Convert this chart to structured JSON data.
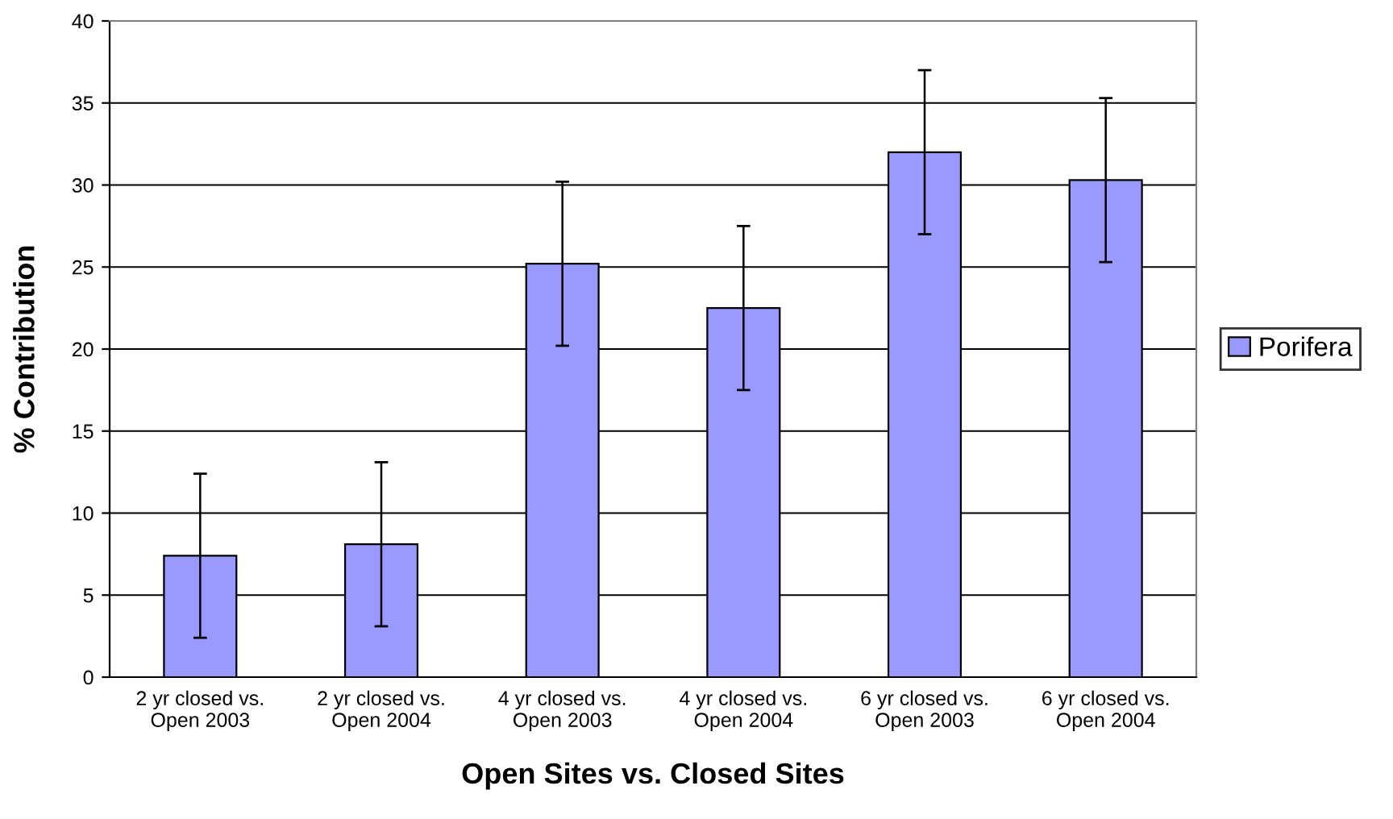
{
  "chart_data": {
    "type": "bar",
    "xlabel": "Open Sites vs. Closed Sites",
    "ylabel": "% Contribution",
    "categories": [
      "2 yr closed vs.\nOpen 2003",
      "2 yr closed vs.\nOpen 2004",
      "4 yr closed vs.\nOpen 2003",
      "4 yr closed vs.\nOpen 2004",
      "6 yr closed vs.\nOpen 2003",
      "6 yr closed vs.\nOpen 2004"
    ],
    "series": [
      {
        "name": "Porifera",
        "color": "#9999ff",
        "values": [
          7.4,
          8.1,
          25.2,
          22.5,
          32.0,
          30.3
        ],
        "errors": [
          5,
          5,
          5,
          5,
          5,
          5
        ]
      }
    ],
    "ylim": [
      0,
      40
    ],
    "yticks": [
      0,
      5,
      10,
      15,
      20,
      25,
      30,
      35,
      40
    ],
    "grid": "y",
    "legend": "right"
  }
}
